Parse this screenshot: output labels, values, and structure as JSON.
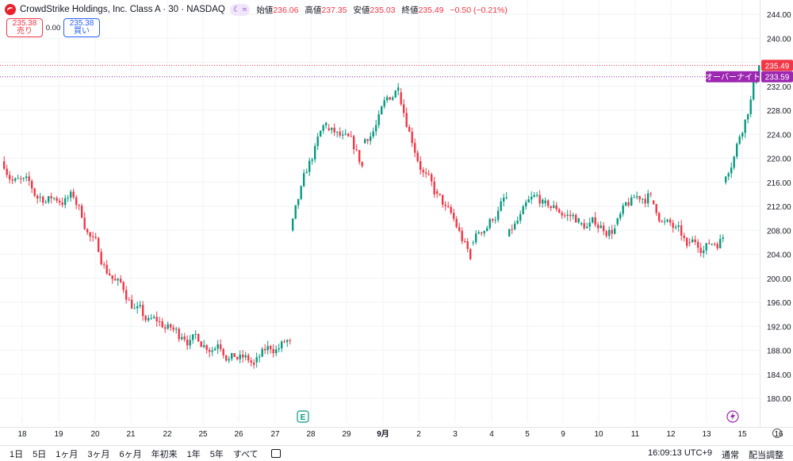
{
  "header": {
    "title": "CrowdStrike Holdings, Inc. Class A · 30 · NASDAQ",
    "chip_icons": [
      "moon-icon",
      "wave-icon"
    ],
    "open_label": "始値",
    "open": "236.06",
    "high_label": "高値",
    "high": "237.35",
    "low_label": "安値",
    "low": "235.03",
    "close_label": "終値",
    "close": "235.49",
    "change": "−0.50 (−0.21%)"
  },
  "trade": {
    "sell_price": "235.38",
    "sell_label": "売り",
    "spread": "0.00",
    "buy_price": "235.38",
    "buy_label": "買い"
  },
  "price_badges": {
    "last": "235.49",
    "overnight_label": "オーバーナイト",
    "overnight": "233.59"
  },
  "bottom": {
    "timeframes": [
      "1日",
      "5日",
      "1ヶ月",
      "3ヶ月",
      "6ヶ月",
      "年初来",
      "1年",
      "5年",
      "すべて"
    ],
    "clock": "16:09:13 UTC+9",
    "session": "通常",
    "adjust": "配当調整"
  },
  "colors": {
    "up": "#089981",
    "down": "#f23645",
    "overnight": "#9c27b0"
  },
  "chart_data": {
    "type": "candlestick",
    "title": "CrowdStrike Holdings, Inc. Class A · 30 · NASDAQ",
    "ylim": [
      177.0,
      245.5
    ],
    "y_ticks": [
      180,
      184,
      188,
      192,
      196,
      200,
      204,
      208,
      212,
      216,
      220,
      224,
      228,
      232,
      236,
      240,
      244
    ],
    "y_tick_labels": [
      "180.00",
      "184.00",
      "188.00",
      "192.00",
      "196.00",
      "200.00",
      "204.00",
      "208.00",
      "212.00",
      "216.00",
      "220.00",
      "224.00",
      "228.00",
      "232.00",
      "236.00",
      "240.00",
      "244.00"
    ],
    "x_labels": [
      "18",
      "19",
      "20",
      "21",
      "22",
      "25",
      "26",
      "27",
      "28",
      "29",
      "9月",
      "2",
      "3",
      "4",
      "5",
      "9",
      "10",
      "11",
      "12",
      "13",
      "15",
      "16"
    ],
    "earnings_marker": "E",
    "daily_closes": [
      {
        "day": "18",
        "close": 213.3
      },
      {
        "day": "19",
        "close": 213.5
      },
      {
        "day": "20",
        "close": 200.5
      },
      {
        "day": "21",
        "close": 193.0
      },
      {
        "day": "22",
        "close": 190.2
      },
      {
        "day": "25",
        "close": 189.0
      },
      {
        "day": "26",
        "close": 185.6
      },
      {
        "day": "27",
        "close": 189.6
      },
      {
        "day": "28",
        "close": 225.9
      },
      {
        "day": "29",
        "close": 218.7
      },
      {
        "day": "9月",
        "close": 231.8
      },
      {
        "day": "2",
        "close": 214.0
      },
      {
        "day": "3",
        "close": 203.2
      },
      {
        "day": "4",
        "close": 213.5
      },
      {
        "day": "5",
        "close": 213.1
      },
      {
        "day": "9",
        "close": 210.0
      },
      {
        "day": "10",
        "close": 208.3
      },
      {
        "day": "11",
        "close": 214.1
      },
      {
        "day": "12",
        "close": 205.4
      },
      {
        "day": "13",
        "close": 206.8
      },
      {
        "day": "15",
        "close": 235.5
      }
    ],
    "last_price": 235.49,
    "overnight_price": 233.59
  }
}
